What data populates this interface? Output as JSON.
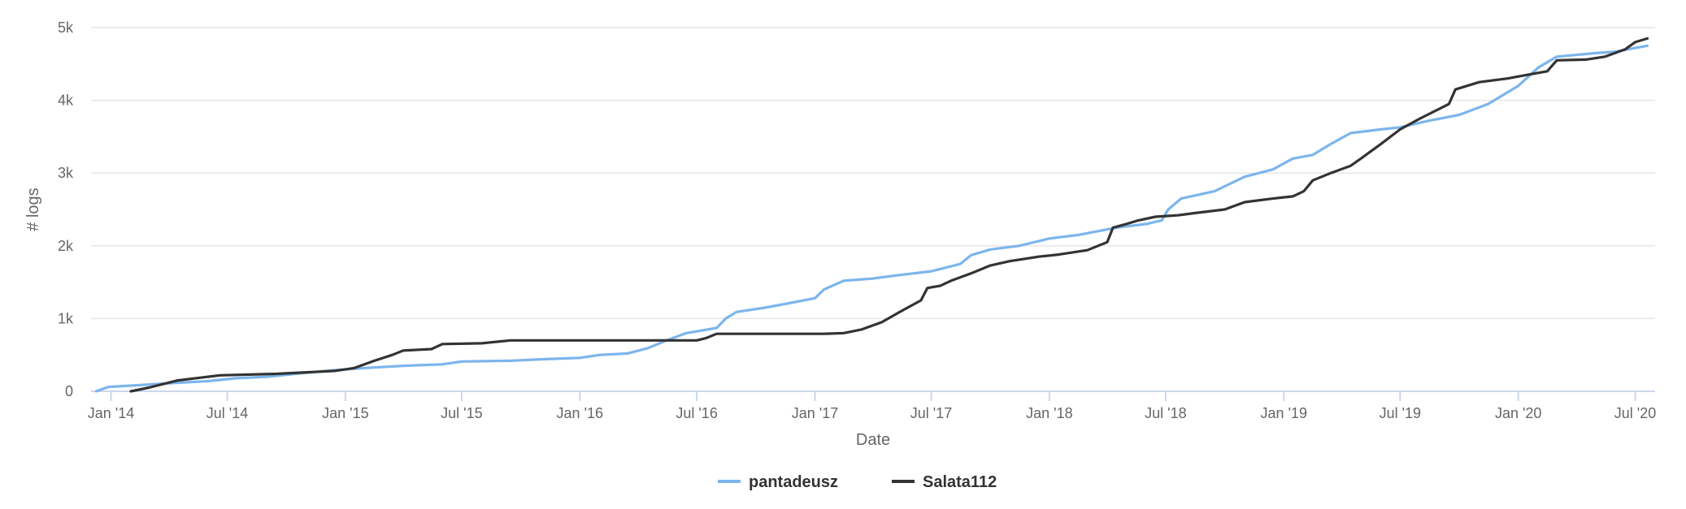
{
  "chart_data": {
    "type": "line",
    "title": "",
    "xlabel": "Date",
    "ylabel": "# logs",
    "x_type": "datetime",
    "xlim": [
      "2013-12-01",
      "2020-08-01"
    ],
    "ylim": [
      0,
      5000
    ],
    "x_ticks": [
      {
        "date": "2014-01-01",
        "label": "Jan '14"
      },
      {
        "date": "2014-07-01",
        "label": "Jul '14"
      },
      {
        "date": "2015-01-01",
        "label": "Jan '15"
      },
      {
        "date": "2015-07-01",
        "label": "Jul '15"
      },
      {
        "date": "2016-01-01",
        "label": "Jan '16"
      },
      {
        "date": "2016-07-01",
        "label": "Jul '16"
      },
      {
        "date": "2017-01-01",
        "label": "Jan '17"
      },
      {
        "date": "2017-07-01",
        "label": "Jul '17"
      },
      {
        "date": "2018-01-01",
        "label": "Jan '18"
      },
      {
        "date": "2018-07-01",
        "label": "Jul '18"
      },
      {
        "date": "2019-01-01",
        "label": "Jan '19"
      },
      {
        "date": "2019-07-01",
        "label": "Jul '19"
      },
      {
        "date": "2020-01-01",
        "label": "Jan '20"
      },
      {
        "date": "2020-07-01",
        "label": "Jul '20"
      }
    ],
    "y_ticks": [
      {
        "value": 0,
        "label": "0"
      },
      {
        "value": 1000,
        "label": "1k"
      },
      {
        "value": 2000,
        "label": "2k"
      },
      {
        "value": 3000,
        "label": "3k"
      },
      {
        "value": 4000,
        "label": "4k"
      },
      {
        "value": 5000,
        "label": "5k"
      }
    ],
    "grid": true,
    "legend": "bottom-center",
    "series": [
      {
        "name": "pantadeusz",
        "color": "#7cb5ec",
        "points": [
          [
            "2013-12-09",
            0
          ],
          [
            "2013-12-28",
            60
          ],
          [
            "2014-02-15",
            85
          ],
          [
            "2014-04-01",
            110
          ],
          [
            "2014-06-01",
            140
          ],
          [
            "2014-07-15",
            180
          ],
          [
            "2014-09-01",
            200
          ],
          [
            "2014-10-15",
            240
          ],
          [
            "2014-12-15",
            290
          ],
          [
            "2015-02-01",
            320
          ],
          [
            "2015-04-01",
            350
          ],
          [
            "2015-06-01",
            370
          ],
          [
            "2015-07-01",
            410
          ],
          [
            "2015-09-15",
            420
          ],
          [
            "2015-11-01",
            440
          ],
          [
            "2016-01-01",
            460
          ],
          [
            "2016-02-01",
            500
          ],
          [
            "2016-03-15",
            520
          ],
          [
            "2016-04-15",
            590
          ],
          [
            "2016-05-15",
            700
          ],
          [
            "2016-06-15",
            800
          ],
          [
            "2016-08-01",
            870
          ],
          [
            "2016-08-15",
            1000
          ],
          [
            "2016-09-01",
            1090
          ],
          [
            "2016-10-15",
            1150
          ],
          [
            "2016-11-15",
            1200
          ],
          [
            "2017-01-01",
            1280
          ],
          [
            "2017-01-15",
            1400
          ],
          [
            "2017-02-15",
            1520
          ],
          [
            "2017-04-01",
            1550
          ],
          [
            "2017-05-15",
            1600
          ],
          [
            "2017-07-01",
            1650
          ],
          [
            "2017-08-15",
            1750
          ],
          [
            "2017-09-01",
            1870
          ],
          [
            "2017-10-01",
            1950
          ],
          [
            "2017-11-15",
            2000
          ],
          [
            "2018-01-01",
            2100
          ],
          [
            "2018-02-15",
            2150
          ],
          [
            "2018-04-15",
            2250
          ],
          [
            "2018-06-01",
            2300
          ],
          [
            "2018-06-25",
            2350
          ],
          [
            "2018-07-05",
            2500
          ],
          [
            "2018-07-25",
            2650
          ],
          [
            "2018-09-15",
            2750
          ],
          [
            "2018-11-01",
            2950
          ],
          [
            "2018-12-15",
            3050
          ],
          [
            "2019-01-15",
            3200
          ],
          [
            "2019-02-15",
            3250
          ],
          [
            "2019-03-15",
            3400
          ],
          [
            "2019-04-15",
            3550
          ],
          [
            "2019-06-01",
            3600
          ],
          [
            "2019-07-01",
            3630
          ],
          [
            "2019-08-15",
            3720
          ],
          [
            "2019-10-01",
            3800
          ],
          [
            "2019-11-15",
            3950
          ],
          [
            "2020-01-01",
            4200
          ],
          [
            "2020-02-01",
            4450
          ],
          [
            "2020-03-01",
            4600
          ],
          [
            "2020-05-01",
            4650
          ],
          [
            "2020-06-01",
            4670
          ],
          [
            "2020-07-01",
            4720
          ],
          [
            "2020-07-20",
            4750
          ]
        ]
      },
      {
        "name": "Salata112",
        "color": "#333333",
        "points": [
          [
            "2014-02-01",
            0
          ],
          [
            "2014-03-01",
            50
          ],
          [
            "2014-04-15",
            150
          ],
          [
            "2014-06-01",
            200
          ],
          [
            "2014-06-20",
            220
          ],
          [
            "2014-09-15",
            240
          ],
          [
            "2014-12-15",
            280
          ],
          [
            "2015-01-15",
            320
          ],
          [
            "2015-02-15",
            420
          ],
          [
            "2015-03-15",
            500
          ],
          [
            "2015-04-01",
            560
          ],
          [
            "2015-05-15",
            580
          ],
          [
            "2015-06-01",
            650
          ],
          [
            "2015-08-01",
            660
          ],
          [
            "2015-09-15",
            700
          ],
          [
            "2016-01-01",
            700
          ],
          [
            "2016-07-01",
            700
          ],
          [
            "2016-07-15",
            730
          ],
          [
            "2016-08-01",
            790
          ],
          [
            "2017-01-15",
            790
          ],
          [
            "2017-02-15",
            800
          ],
          [
            "2017-03-15",
            850
          ],
          [
            "2017-04-15",
            950
          ],
          [
            "2017-05-15",
            1100
          ],
          [
            "2017-06-15",
            1250
          ],
          [
            "2017-06-25",
            1420
          ],
          [
            "2017-07-15",
            1450
          ],
          [
            "2017-08-01",
            1520
          ],
          [
            "2017-09-01",
            1620
          ],
          [
            "2017-10-01",
            1730
          ],
          [
            "2017-11-01",
            1790
          ],
          [
            "2017-12-15",
            1850
          ],
          [
            "2018-01-15",
            1880
          ],
          [
            "2018-03-01",
            1940
          ],
          [
            "2018-04-01",
            2050
          ],
          [
            "2018-04-10",
            2250
          ],
          [
            "2018-05-01",
            2300
          ],
          [
            "2018-05-20",
            2350
          ],
          [
            "2018-06-15",
            2400
          ],
          [
            "2018-07-20",
            2420
          ],
          [
            "2018-08-15",
            2450
          ],
          [
            "2018-10-01",
            2500
          ],
          [
            "2018-11-01",
            2600
          ],
          [
            "2018-12-15",
            2650
          ],
          [
            "2019-01-15",
            2680
          ],
          [
            "2019-02-01",
            2750
          ],
          [
            "2019-02-15",
            2900
          ],
          [
            "2019-03-15",
            3000
          ],
          [
            "2019-04-15",
            3100
          ],
          [
            "2019-05-01",
            3200
          ],
          [
            "2019-06-01",
            3400
          ],
          [
            "2019-07-01",
            3600
          ],
          [
            "2019-08-01",
            3750
          ],
          [
            "2019-09-15",
            3950
          ],
          [
            "2019-09-25",
            4150
          ],
          [
            "2019-11-01",
            4250
          ],
          [
            "2019-12-15",
            4300
          ],
          [
            "2020-01-15",
            4350
          ],
          [
            "2020-02-15",
            4400
          ],
          [
            "2020-03-01",
            4550
          ],
          [
            "2020-04-15",
            4560
          ],
          [
            "2020-05-15",
            4600
          ],
          [
            "2020-06-15",
            4700
          ],
          [
            "2020-07-01",
            4800
          ],
          [
            "2020-07-20",
            4850
          ]
        ]
      }
    ]
  }
}
